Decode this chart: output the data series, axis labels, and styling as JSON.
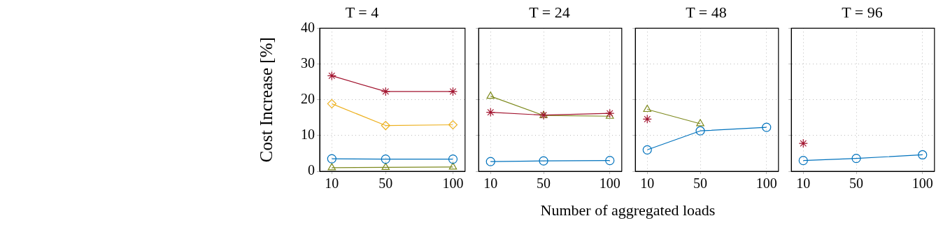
{
  "chart_data": [
    {
      "type": "line",
      "title": "T = 4",
      "ylabel": "Cost Increase [%]",
      "xlim": [
        1,
        109
      ],
      "xticks": [
        10,
        50,
        100
      ],
      "ylim": [
        0,
        40
      ],
      "yticks": [
        0,
        10,
        20,
        30,
        40
      ],
      "grid": true,
      "legend": false,
      "line_style": "solid",
      "series": [
        {
          "color": "#a2142f",
          "marker": "cross",
          "x": [
            10,
            50,
            100
          ],
          "values": [
            26.7,
            22.3,
            22.3
          ]
        },
        {
          "color": "#edb120",
          "marker": "diamond",
          "x": [
            10,
            50,
            100
          ],
          "values": [
            18.9,
            12.8,
            13.0
          ]
        },
        {
          "color": "#0072bd",
          "marker": "circle",
          "x": [
            10,
            50,
            100
          ],
          "values": [
            3.5,
            3.4,
            3.4
          ]
        },
        {
          "color": "#7e8a1e",
          "marker": "triangle",
          "x": [
            10,
            50,
            100
          ],
          "values": [
            1.0,
            1.1,
            1.2
          ]
        }
      ]
    },
    {
      "type": "line",
      "title": "T = 24",
      "xlabel": "Number of aggregated loads",
      "xlim": [
        1,
        109
      ],
      "xticks": [
        10,
        50,
        100
      ],
      "ylim": [
        0,
        40
      ],
      "yticks": [
        0,
        10,
        20,
        30,
        40
      ],
      "tick_labels": "x",
      "grid": true,
      "legend": false,
      "line_style": "solid",
      "series": [
        {
          "color": "#a2142f",
          "marker": "cross",
          "x": [
            10,
            50,
            100
          ],
          "values": [
            16.5,
            15.7,
            16.2
          ]
        },
        {
          "color": "#0072bd",
          "marker": "circle",
          "x": [
            10,
            50,
            100
          ],
          "values": [
            2.7,
            2.9,
            3.0
          ]
        },
        {
          "color": "#7e8a1e",
          "marker": "triangle",
          "x": [
            10,
            50,
            100
          ],
          "values": [
            21.0,
            15.6,
            15.4
          ]
        }
      ]
    },
    {
      "type": "line",
      "title": "T = 48",
      "xlim": [
        1,
        109
      ],
      "xticks": [
        10,
        50,
        100
      ],
      "ylim": [
        0,
        40
      ],
      "yticks": [
        0,
        10,
        20,
        30,
        40
      ],
      "tick_labels": "x",
      "grid": true,
      "legend": false,
      "line_style": "solid",
      "series": [
        {
          "color": "#a2142f",
          "marker": "cross",
          "x": [
            10
          ],
          "values": [
            14.6
          ]
        },
        {
          "color": "#0072bd",
          "marker": "circle",
          "x": [
            10,
            50,
            100
          ],
          "values": [
            6.0,
            11.3,
            12.3
          ]
        },
        {
          "color": "#7e8a1e",
          "marker": "triangle",
          "x": [
            10,
            50
          ],
          "values": [
            17.3,
            13.3
          ]
        }
      ]
    },
    {
      "type": "line",
      "title": "T = 96",
      "xlim": [
        1,
        109
      ],
      "xticks": [
        10,
        50,
        100
      ],
      "ylim": [
        0,
        40
      ],
      "yticks": [
        0,
        10,
        20,
        30,
        40
      ],
      "tick_labels": "x",
      "grid": true,
      "legend": false,
      "line_style": "solid",
      "series": [
        {
          "color": "#a2142f",
          "marker": "cross",
          "x": [
            10
          ],
          "values": [
            7.8
          ]
        },
        {
          "color": "#0072bd",
          "marker": "circle",
          "x": [
            10,
            50,
            100
          ],
          "values": [
            3.0,
            3.6,
            4.6
          ]
        }
      ]
    }
  ]
}
